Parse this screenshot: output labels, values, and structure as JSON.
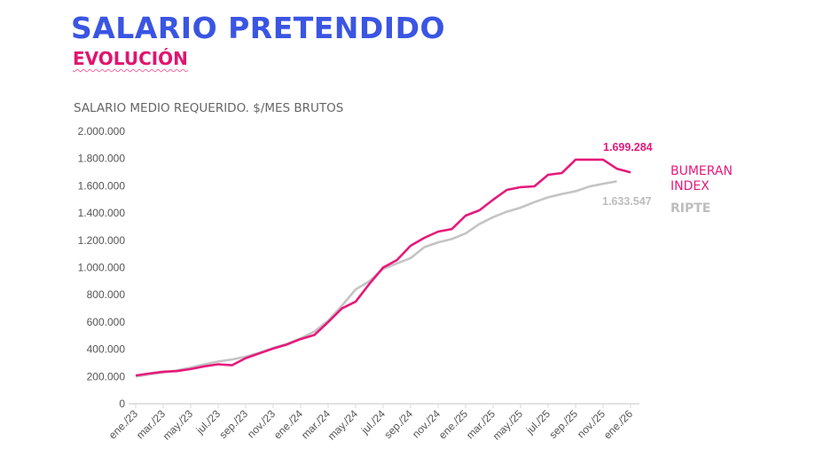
{
  "header": {
    "title": "SALARIO PRETENDIDO",
    "subtitle": "EVOLUCIÓN"
  },
  "chart_data": {
    "type": "line",
    "title": "SALARIO PRETENDIDO",
    "subtitle": "EVOLUCIÓN",
    "ylabel": "SALARIO MEDIO REQUERIDO. $/MES BRUTOS",
    "xlabel": "",
    "ylim": [
      0,
      2000000
    ],
    "yticks": [
      "0",
      "200.000",
      "400.000",
      "600.000",
      "800.000",
      "1.000.000",
      "1.200.000",
      "1.400.000",
      "1.600.000",
      "1.800.000",
      "2.000.000"
    ],
    "xtick_labels": [
      "ene./23",
      "mar./23",
      "may./23",
      "jul./23",
      "sep./23",
      "nov./23",
      "ene./24",
      "mar./24",
      "may./24",
      "jul./24",
      "sep./24",
      "nov./24",
      "ene./25",
      "mar./25",
      "may./25",
      "jul./25",
      "sep./25",
      "nov./25",
      "ene./26"
    ],
    "months_count": 37,
    "grid": false,
    "legend_placement": "right (end of lines)",
    "series": [
      {
        "name": "BUMERAN INDEX",
        "label_lines": [
          "BUMERAN",
          "INDEX"
        ],
        "color": "#e5197a",
        "end_label": "1.699.284",
        "values": [
          208000,
          222000,
          235000,
          240000,
          255000,
          275000,
          290000,
          283000,
          335000,
          370000,
          405000,
          435000,
          475000,
          505000,
          600000,
          700000,
          750000,
          880000,
          1000000,
          1055000,
          1160000,
          1218000,
          1264000,
          1283000,
          1381000,
          1420000,
          1498000,
          1570000,
          1590000,
          1596000,
          1681000,
          1694000,
          1792000,
          1792000,
          1792000,
          1726000,
          1699284
        ]
      },
      {
        "name": "RIPTE",
        "label_lines": [
          "RIPTE"
        ],
        "color": "#c4c4c4",
        "end_label": "1.633.547",
        "values": [
          200000,
          215000,
          230000,
          245000,
          265000,
          290000,
          310000,
          325000,
          345000,
          375000,
          410000,
          440000,
          480000,
          530000,
          610000,
          720000,
          840000,
          900000,
          990000,
          1030000,
          1070000,
          1150000,
          1185000,
          1210000,
          1250000,
          1320000,
          1370000,
          1410000,
          1440000,
          1480000,
          1515000,
          1540000,
          1560000,
          1595000,
          1615000,
          1633547
        ]
      }
    ]
  }
}
